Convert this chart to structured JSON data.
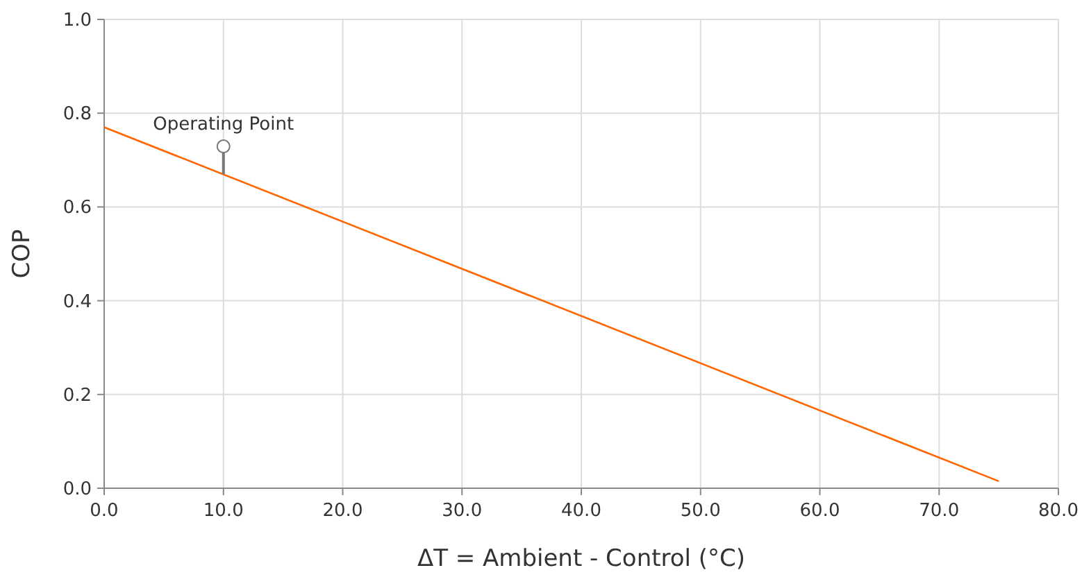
{
  "chart_data": {
    "type": "line",
    "xlabel": "ΔT = Ambient - Control (°C)",
    "ylabel": "COP",
    "x": [
      0,
      75
    ],
    "series": [
      {
        "color": "#ff6600",
        "values": [
          0.77,
          0.015
        ]
      }
    ],
    "xlim": [
      0,
      80
    ],
    "ylim": [
      0,
      1
    ],
    "xticks": [
      {
        "value": 0,
        "label": "0.0"
      },
      {
        "value": 10,
        "label": "10.0"
      },
      {
        "value": 20,
        "label": "20.0"
      },
      {
        "value": 30,
        "label": "30.0"
      },
      {
        "value": 40,
        "label": "40.0"
      },
      {
        "value": 50,
        "label": "50.0"
      },
      {
        "value": 60,
        "label": "60.0"
      },
      {
        "value": 70,
        "label": "70.0"
      },
      {
        "value": 80,
        "label": "80.0"
      }
    ],
    "yticks": [
      {
        "value": 0,
        "label": "0.0"
      },
      {
        "value": 0.2,
        "label": "0.2"
      },
      {
        "value": 0.4,
        "label": "0.4"
      },
      {
        "value": 0.6,
        "label": "0.6"
      },
      {
        "value": 0.8,
        "label": "0.8"
      },
      {
        "value": 1,
        "label": "1.0"
      }
    ],
    "grid": true,
    "marker": "none",
    "line_style": "solid",
    "annotations": [
      {
        "text": "Operating Point",
        "x": 10,
        "y": 0.67
      }
    ]
  }
}
